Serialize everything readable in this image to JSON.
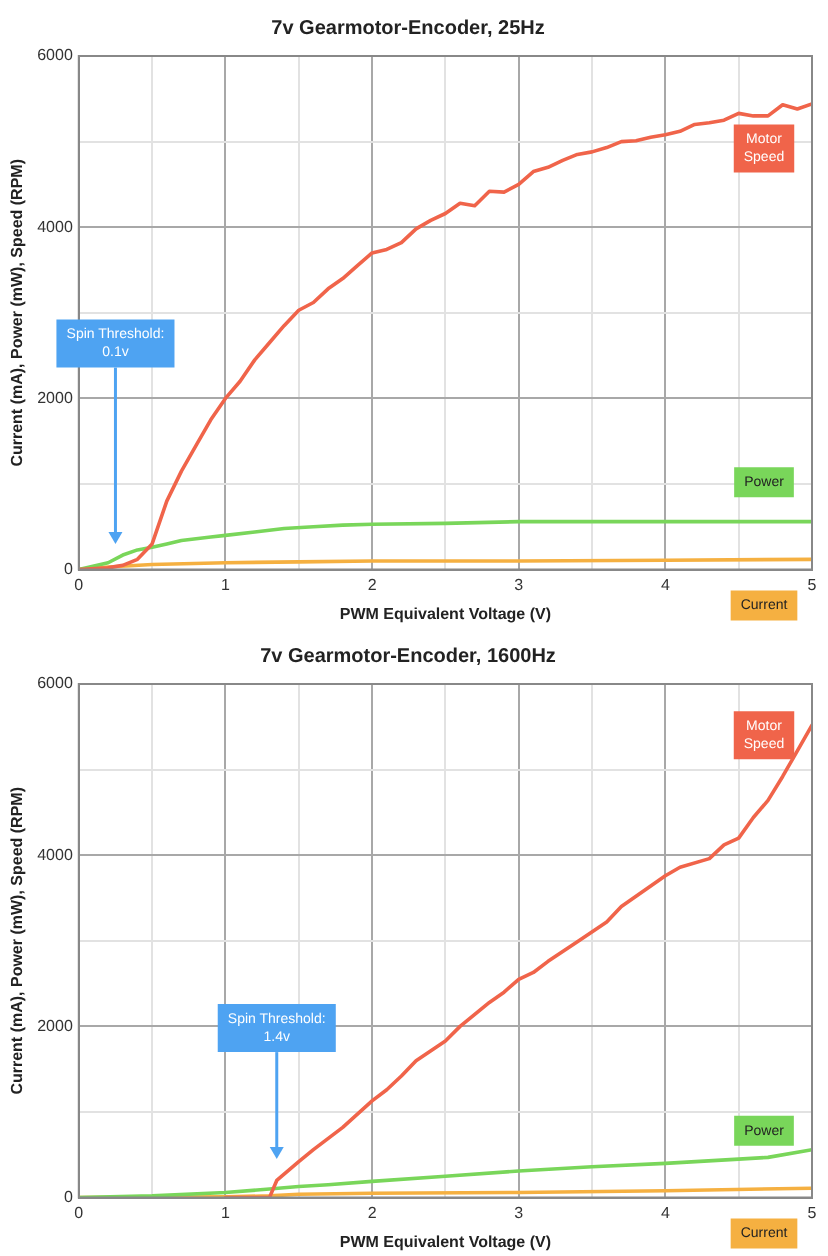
{
  "chart_data": [
    {
      "type": "line",
      "title": "7v Gearmotor-Encoder, 25Hz",
      "xlabel": "PWM Equivalent Voltage (V)",
      "ylabel": "Current (mA), Power (mW), Speed (RPM)",
      "xlim": [
        0,
        5
      ],
      "ylim": [
        0,
        6000
      ],
      "xticks": [
        0,
        {
          "value": 0.5,
          "label": null
        },
        1,
        {
          "value": 1.5,
          "label": null
        },
        2,
        {
          "value": 2.5,
          "label": null
        },
        3,
        {
          "value": 3.5,
          "label": null
        },
        4,
        {
          "value": 4.5,
          "label": null
        },
        5
      ],
      "yticks": [
        0,
        {
          "value": 1000,
          "label": null
        },
        2000,
        {
          "value": 3000,
          "label": null
        },
        4000,
        {
          "value": 5000,
          "label": null
        },
        6000
      ],
      "grid": true,
      "legend": false,
      "marker": "none",
      "line_style": "solid",
      "annotations": [
        "Spin Threshold: 0.1v"
      ],
      "series": [
        {
          "name": "Motor Speed",
          "color": "#f0644a",
          "x": [
            0,
            0.2,
            0.3,
            0.4,
            0.5,
            0.6,
            0.7,
            0.8,
            0.9,
            1.0,
            1.1,
            1.2,
            1.3,
            1.4,
            1.5,
            1.6,
            1.7,
            1.8,
            1.9,
            2.0,
            2.1,
            2.2,
            2.3,
            2.4,
            2.5,
            2.6,
            2.7,
            2.8,
            2.9,
            3.0,
            3.1,
            3.2,
            3.3,
            3.4,
            3.5,
            3.6,
            3.7,
            3.8,
            3.9,
            4.0,
            4.1,
            4.2,
            4.3,
            4.4,
            4.5,
            4.6,
            4.7,
            4.8,
            4.9,
            5.0
          ],
          "values": [
            0,
            20,
            50,
            120,
            300,
            800,
            1150,
            1450,
            1750,
            2000,
            2200,
            2450,
            2650,
            2850,
            3030,
            3120,
            3280,
            3400,
            3550,
            3700,
            3740,
            3820,
            3980,
            4080,
            4160,
            4280,
            4250,
            4420,
            4410,
            4500,
            4650,
            4700,
            4780,
            4850,
            4880,
            4930,
            5000,
            5010,
            5050,
            5080,
            5120,
            5200,
            5220,
            5250,
            5330,
            5300,
            5300,
            5430,
            5380,
            5440
          ]
        },
        {
          "name": "Power",
          "color": "#79d65a",
          "x": [
            0,
            0.2,
            0.3,
            0.4,
            0.5,
            0.6,
            0.7,
            0.8,
            0.9,
            1.0,
            1.2,
            1.4,
            1.6,
            1.8,
            2.0,
            2.5,
            3.0,
            3.5,
            4.0,
            4.5,
            5.0
          ],
          "values": [
            0,
            80,
            170,
            230,
            260,
            300,
            340,
            360,
            380,
            400,
            440,
            480,
            500,
            520,
            530,
            540,
            560,
            560,
            560,
            560,
            560
          ]
        },
        {
          "name": "Current",
          "color": "#f5b041",
          "x": [
            0,
            0.2,
            0.5,
            1.0,
            1.5,
            2.0,
            3.0,
            4.0,
            5.0
          ],
          "values": [
            0,
            30,
            60,
            80,
            90,
            100,
            100,
            110,
            120
          ]
        }
      ]
    },
    {
      "type": "line",
      "title": "7v Gearmotor-Encoder, 1600Hz",
      "xlabel": "PWM Equivalent Voltage (V)",
      "ylabel": "Current (mA), Power (mW), Speed (RPM)",
      "xlim": [
        0,
        5
      ],
      "ylim": [
        0,
        6000
      ],
      "xticks": [
        0,
        {
          "value": 0.5,
          "label": null
        },
        1,
        {
          "value": 1.5,
          "label": null
        },
        2,
        {
          "value": 2.5,
          "label": null
        },
        3,
        {
          "value": 3.5,
          "label": null
        },
        4,
        {
          "value": 4.5,
          "label": null
        },
        5
      ],
      "yticks": [
        0,
        {
          "value": 1000,
          "label": null
        },
        2000,
        {
          "value": 3000,
          "label": null
        },
        4000,
        {
          "value": 5000,
          "label": null
        },
        6000
      ],
      "grid": true,
      "legend": false,
      "marker": "none",
      "line_style": "solid",
      "annotations": [
        "Spin Threshold: 1.4v"
      ],
      "series": [
        {
          "name": "Motor Speed",
          "color": "#f0644a",
          "x": [
            1.0,
            1.3,
            1.35,
            1.5,
            1.6,
            1.8,
            2.0,
            2.1,
            2.2,
            2.3,
            2.5,
            2.6,
            2.8,
            2.9,
            3.0,
            3.1,
            3.2,
            3.4,
            3.6,
            3.7,
            3.8,
            4.0,
            4.1,
            4.3,
            4.4,
            4.5,
            4.6,
            4.7,
            4.8,
            4.9,
            5.0
          ],
          "values": [
            0,
            0,
            200,
            420,
            560,
            820,
            1130,
            1260,
            1420,
            1600,
            1830,
            2000,
            2280,
            2400,
            2550,
            2630,
            2760,
            2990,
            3220,
            3400,
            3520,
            3760,
            3860,
            3960,
            4120,
            4200,
            4440,
            4640,
            4920,
            5220,
            5520
          ]
        },
        {
          "name": "Power",
          "color": "#79d65a",
          "x": [
            0,
            0.5,
            1.0,
            1.3,
            1.5,
            1.7,
            2.0,
            2.5,
            3.0,
            3.5,
            4.0,
            4.5,
            4.7,
            5.0
          ],
          "values": [
            0,
            20,
            60,
            100,
            130,
            150,
            190,
            250,
            310,
            360,
            400,
            450,
            470,
            560
          ]
        },
        {
          "name": "Current",
          "color": "#f5b041",
          "x": [
            0,
            1.0,
            1.3,
            1.5,
            2.0,
            3.0,
            4.0,
            5.0
          ],
          "values": [
            0,
            10,
            20,
            40,
            50,
            60,
            80,
            110
          ]
        }
      ]
    }
  ]
}
